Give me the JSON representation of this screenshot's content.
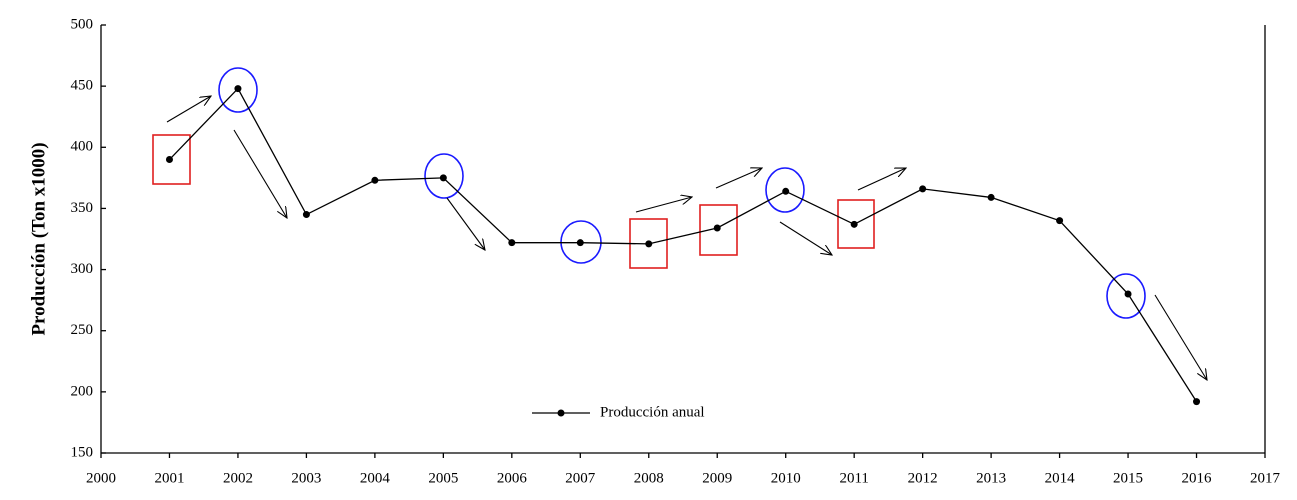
{
  "chart_data": {
    "type": "line",
    "y_label": "Producción (Ton x1000)",
    "x": [
      2001,
      2002,
      2003,
      2004,
      2005,
      2006,
      2007,
      2008,
      2009,
      2010,
      2011,
      2012,
      2013,
      2014,
      2015,
      2016
    ],
    "series": [
      {
        "name": "Producción anual",
        "color": "#000000",
        "values": [
          390,
          448,
          345,
          373,
          375,
          322,
          322,
          321,
          334,
          364,
          337,
          366,
          359,
          340,
          280,
          192
        ]
      }
    ],
    "xlim": [
      2000,
      2017
    ],
    "xticks": [
      2000,
      2001,
      2002,
      2003,
      2004,
      2005,
      2006,
      2007,
      2008,
      2009,
      2010,
      2011,
      2012,
      2013,
      2014,
      2015,
      2016,
      2017
    ],
    "ylim": [
      150,
      500
    ],
    "yticks": [
      150,
      200,
      250,
      300,
      350,
      400,
      450,
      500
    ],
    "grid": false
  }
}
